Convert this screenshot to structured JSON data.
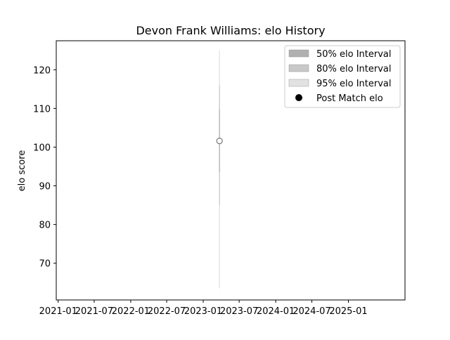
{
  "chart_data": {
    "type": "scatter",
    "title": "Devon Frank Williams: elo History",
    "xlabel": "",
    "ylabel": "elo score",
    "x_ticks": [
      "2021-01",
      "2021-07",
      "2022-01",
      "2022-07",
      "2023-01",
      "2023-07",
      "2024-01",
      "2024-07",
      "2025-01"
    ],
    "xlim": [
      "2020-12-22",
      "2025-10-13"
    ],
    "ylim": [
      60.5,
      127.5
    ],
    "y_ticks": [
      70,
      80,
      90,
      100,
      110,
      120
    ],
    "grid": false,
    "legend_position": "top-right",
    "legend": [
      {
        "label": "50% elo Interval",
        "color": "#b0b0b0",
        "kind": "patch"
      },
      {
        "label": "80% elo Interval",
        "color": "#c8c8c8",
        "kind": "patch"
      },
      {
        "label": "95% elo Interval",
        "color": "#e2e2e2",
        "kind": "patch"
      },
      {
        "label": "Post Match elo",
        "color": "#000000",
        "kind": "marker"
      }
    ],
    "series": [
      {
        "name": "Post Match elo",
        "points": [
          {
            "date": "2023-03-24",
            "elo": 101.6,
            "interval_50": [
              93.5,
              109.7
            ],
            "interval_80": [
              85.0,
              116.0
            ],
            "interval_95": [
              63.5,
              125.0
            ]
          }
        ]
      }
    ]
  }
}
